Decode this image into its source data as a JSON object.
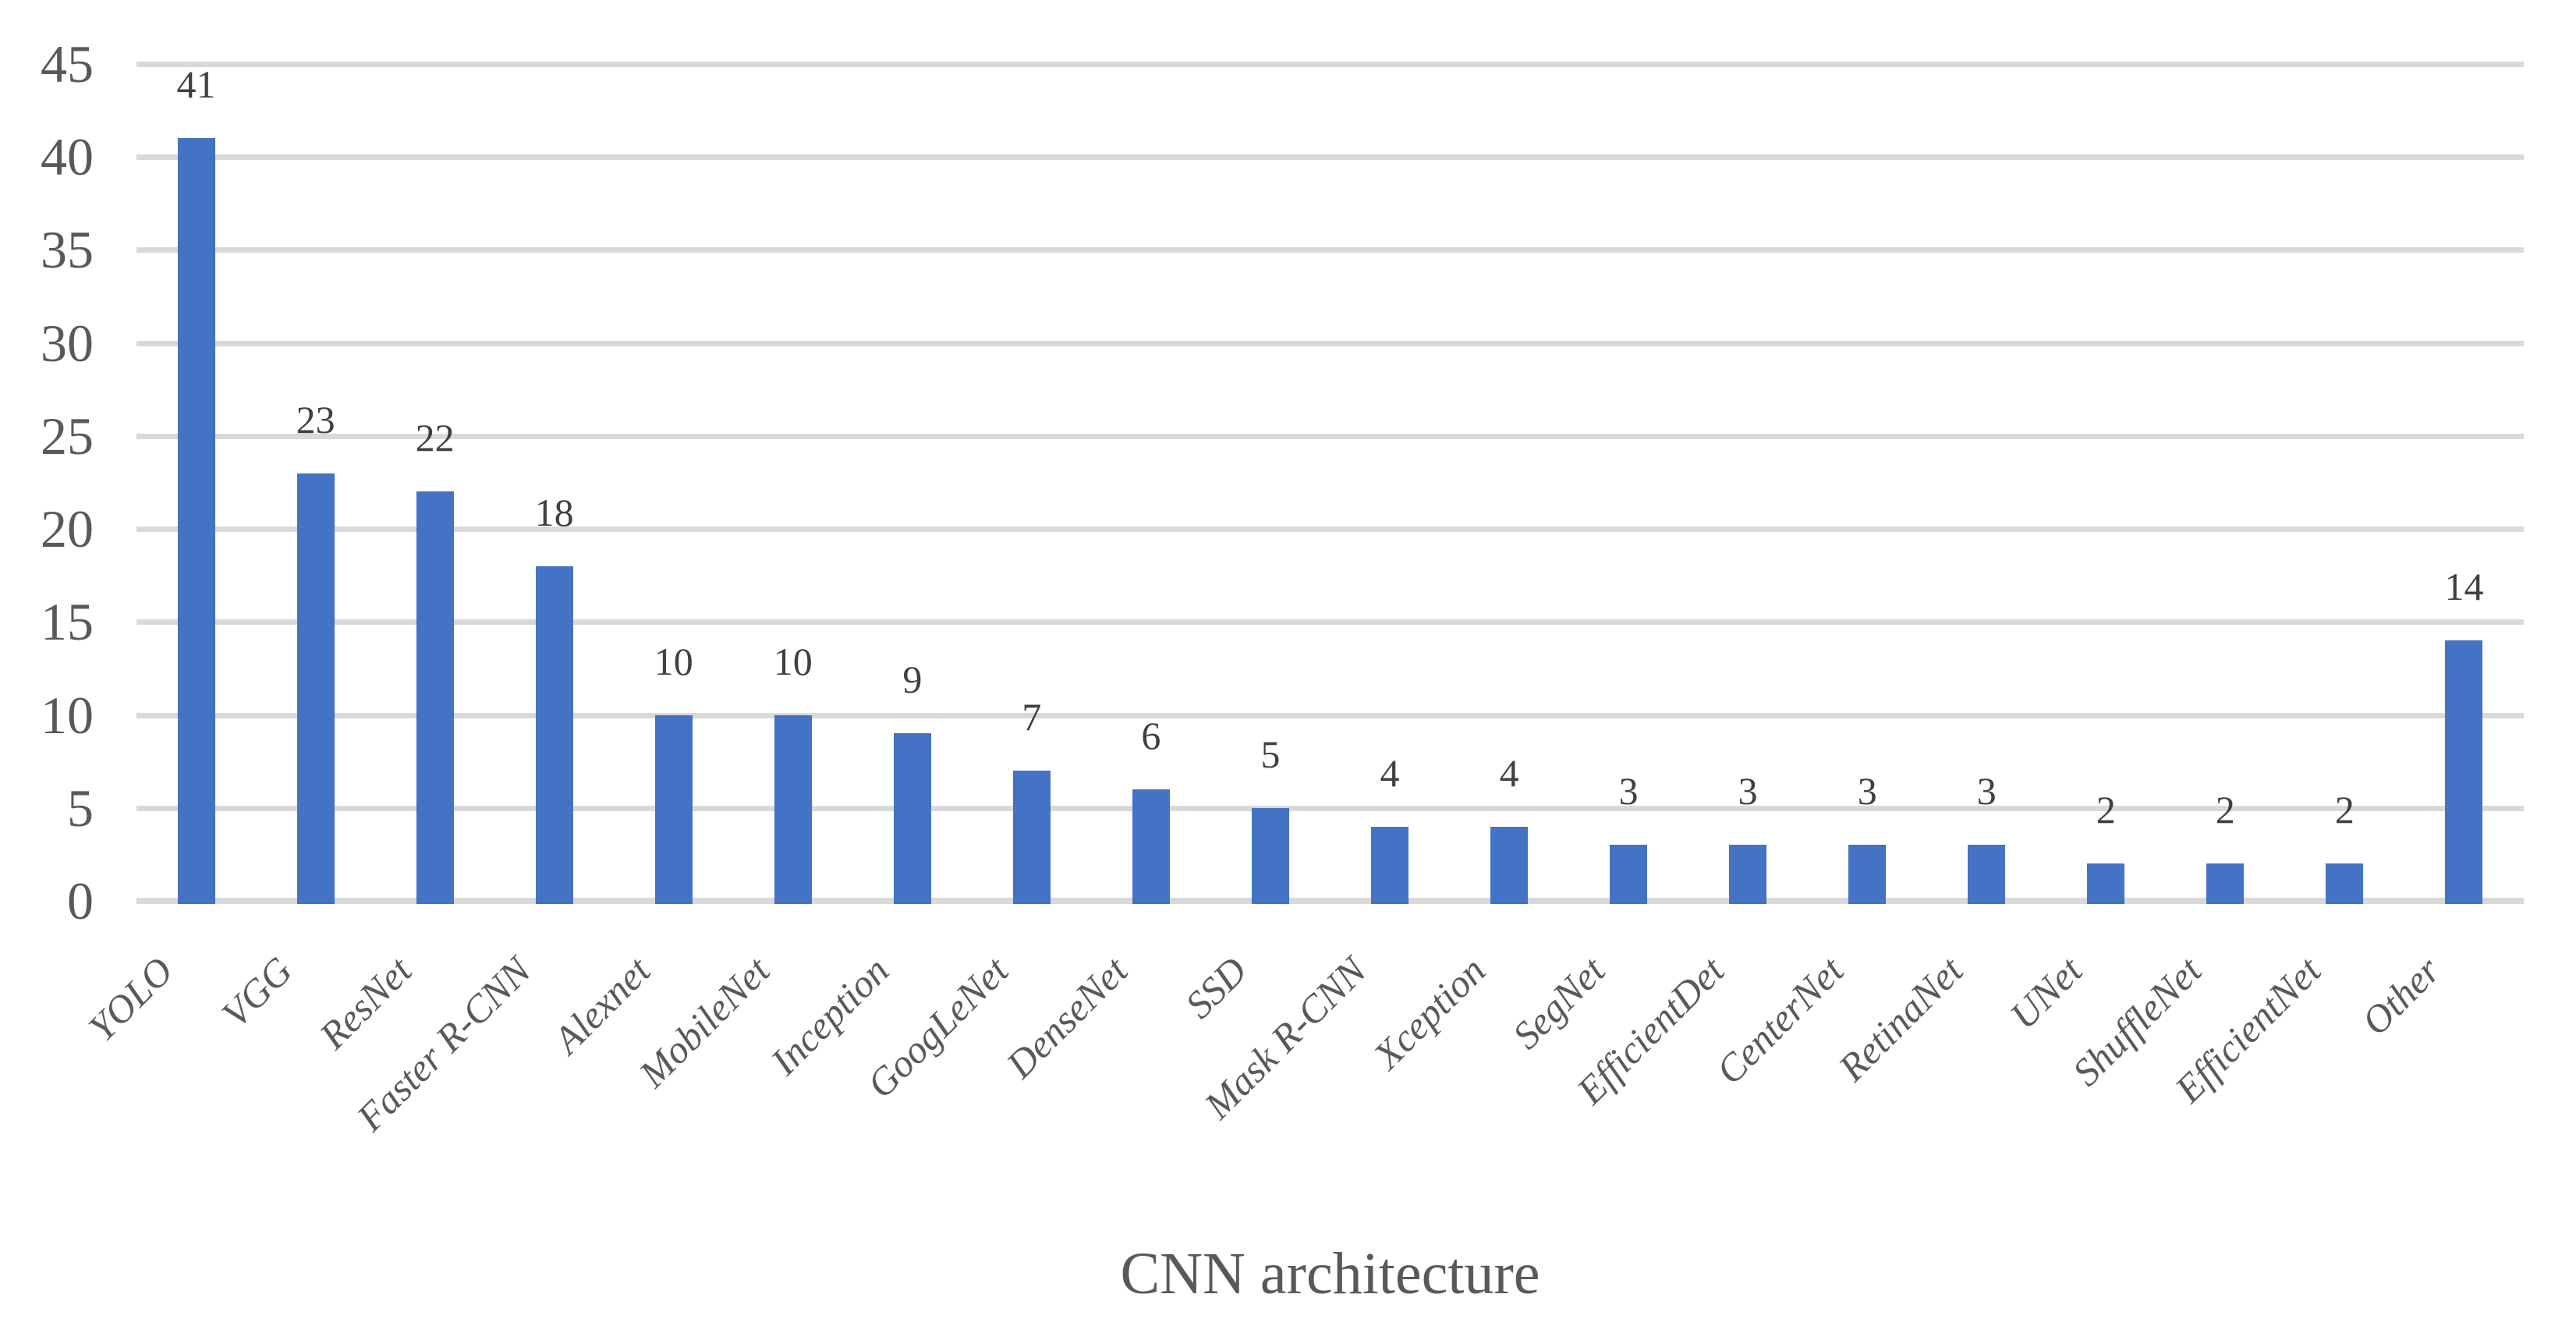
{
  "chart_data": {
    "type": "bar",
    "title": "",
    "xlabel": "CNN architecture",
    "ylabel": "",
    "categories": [
      "YOLO",
      "VGG",
      "ResNet",
      "Faster R-CNN",
      "Alexnet",
      "MobileNet",
      "Inception",
      "GoogLeNet",
      "DenseNet",
      "SSD",
      "Mask R-CNN",
      "Xception",
      "SegNet",
      "EfficientDet",
      "CenterNet",
      "RetinaNet",
      "UNet",
      "ShuffleNet",
      "EfficientNet",
      "Other"
    ],
    "values": [
      41,
      23,
      22,
      18,
      10,
      10,
      9,
      7,
      6,
      5,
      4,
      4,
      3,
      3,
      3,
      3,
      2,
      2,
      2,
      14
    ],
    "data_labels": [
      41,
      23,
      22,
      18,
      10,
      10,
      9,
      7,
      6,
      5,
      4,
      4,
      3,
      3,
      3,
      3,
      2,
      2,
      2,
      14
    ],
    "ylim": [
      0,
      45
    ],
    "yticks": [
      0,
      5,
      10,
      15,
      20,
      25,
      30,
      35,
      40,
      45
    ],
    "grid": "horizontal",
    "legend": "none",
    "category_label_rotation_deg": 45,
    "colors": {
      "bar": "#4472C4",
      "gridline": "#D9D9D9",
      "axis_line": "#D9D9D9",
      "tick_label": "#595959",
      "data_label": "#404040",
      "category_label": "#595959",
      "axis_title": "#595959",
      "background": "#FFFFFF"
    }
  }
}
